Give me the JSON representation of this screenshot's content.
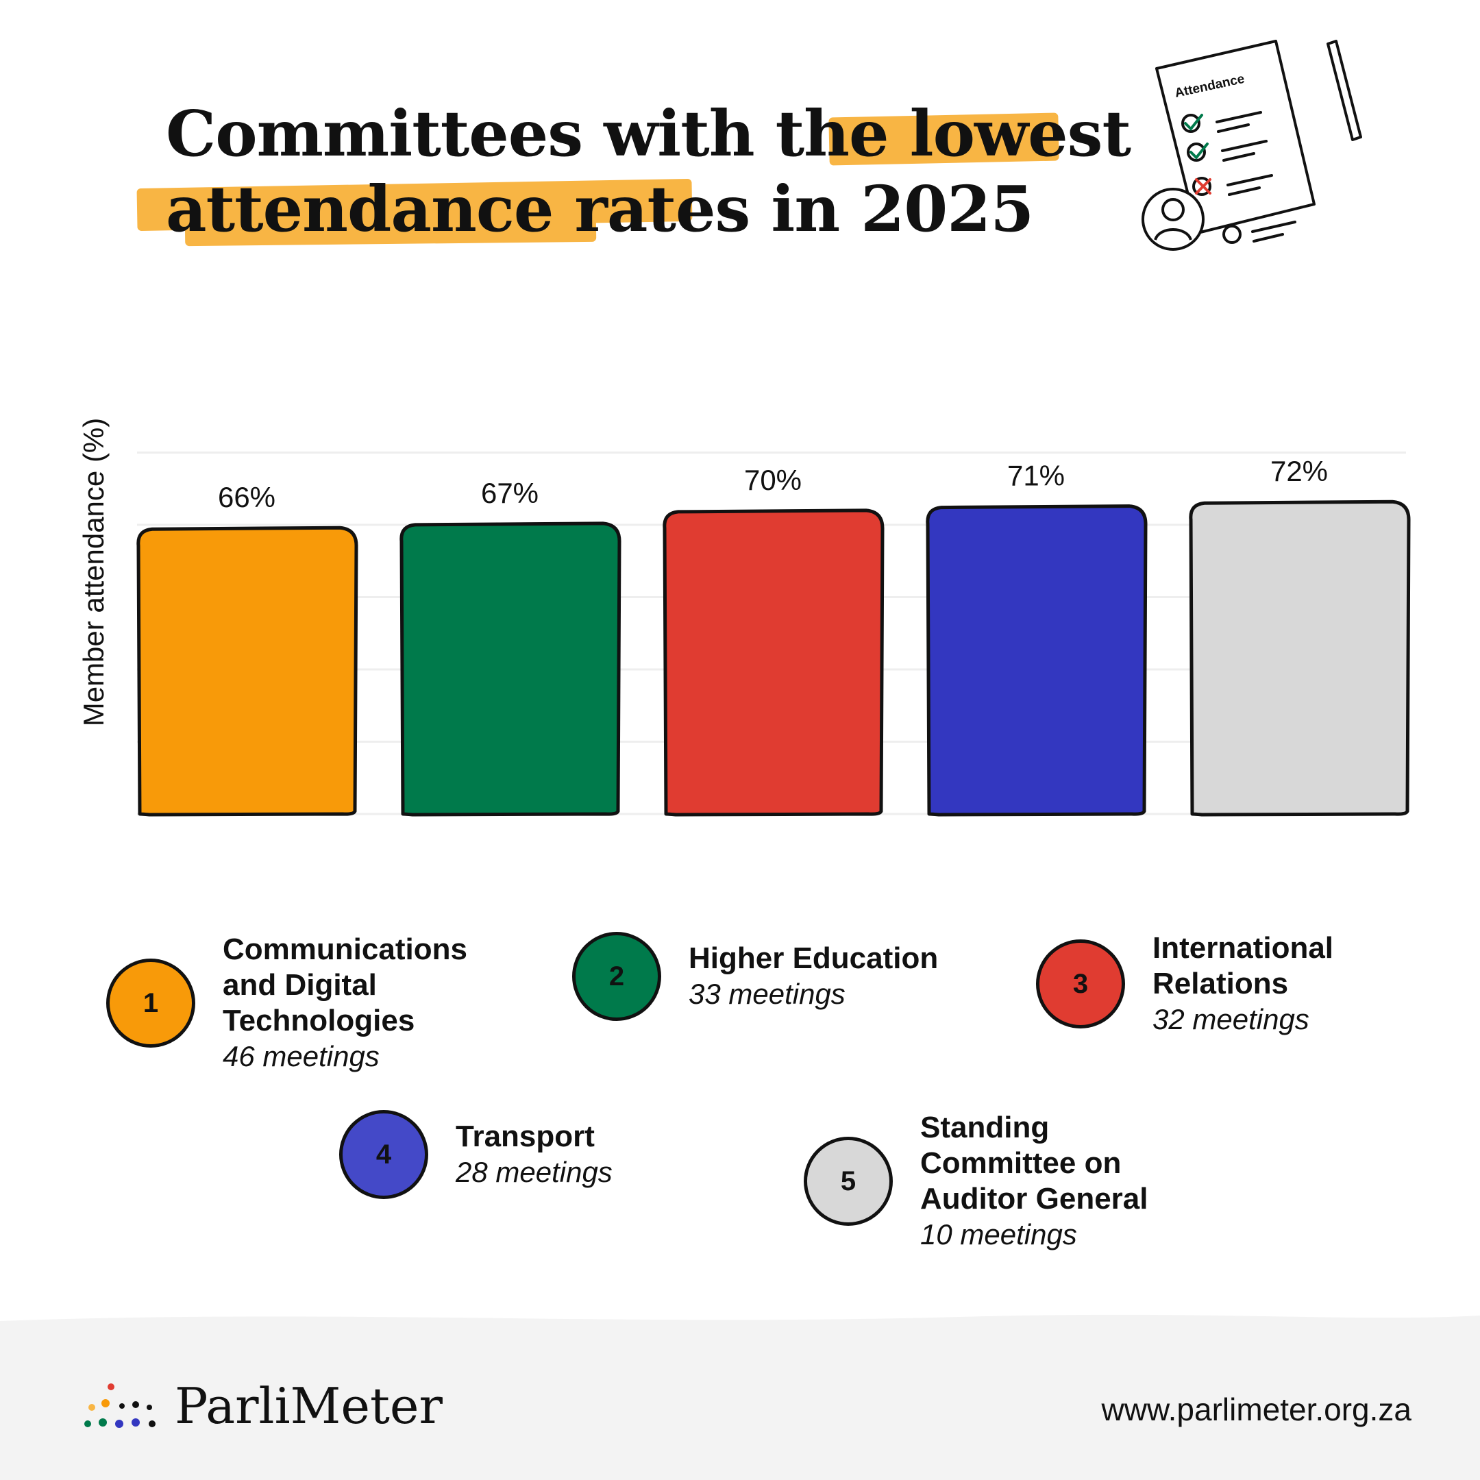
{
  "title": {
    "line1_before": "Committees with the",
    "line1_highlight": "lowest",
    "line2_highlight": "attendance rates",
    "line2_after": "in 2025",
    "highlight_color": "#f8b544"
  },
  "illustration": {
    "heading": "Attendance"
  },
  "chart_data": {
    "type": "bar",
    "title": "Committees with the lowest attendance rates in 2025",
    "ylabel": "Member attendance (%)",
    "xlabel": "",
    "categories": [
      "Communications and Digital Technologies",
      "Higher Education",
      "International Relations",
      "Transport",
      "Standing Committee on Auditor General"
    ],
    "values": [
      66,
      67,
      70,
      71,
      72
    ],
    "value_labels": [
      "66%",
      "67%",
      "70%",
      "71%",
      "72%"
    ],
    "colors": [
      "#f89a09",
      "#007a4b",
      "#e03c31",
      "#3337c0",
      "#d8d8d8"
    ],
    "ylim": [
      0,
      100
    ],
    "grid": true,
    "legend": "bottom"
  },
  "legend": [
    {
      "number": "1",
      "name": "Communications\nand Digital\nTechnologies",
      "meetings": "46 meetings",
      "color": "#f89a09"
    },
    {
      "number": "2",
      "name": "Higher Education",
      "meetings": "33 meetings",
      "color": "#007a4b"
    },
    {
      "number": "3",
      "name": "International\nRelations",
      "meetings": "32 meetings",
      "color": "#e03c31"
    },
    {
      "number": "4",
      "name": "Transport",
      "meetings": "28 meetings",
      "color": "#4449c8"
    },
    {
      "number": "5",
      "name": "Standing\nCommittee on\nAuditor General",
      "meetings": "10 meetings",
      "color": "#d8d8d8"
    }
  ],
  "footer": {
    "brand": "ParliMeter",
    "url": "www.parlimeter.org.za",
    "dot_colors": [
      "#e03c31",
      "#f8b544",
      "#f89a09",
      "#007a4b",
      "#3337c0",
      "#111111"
    ]
  }
}
